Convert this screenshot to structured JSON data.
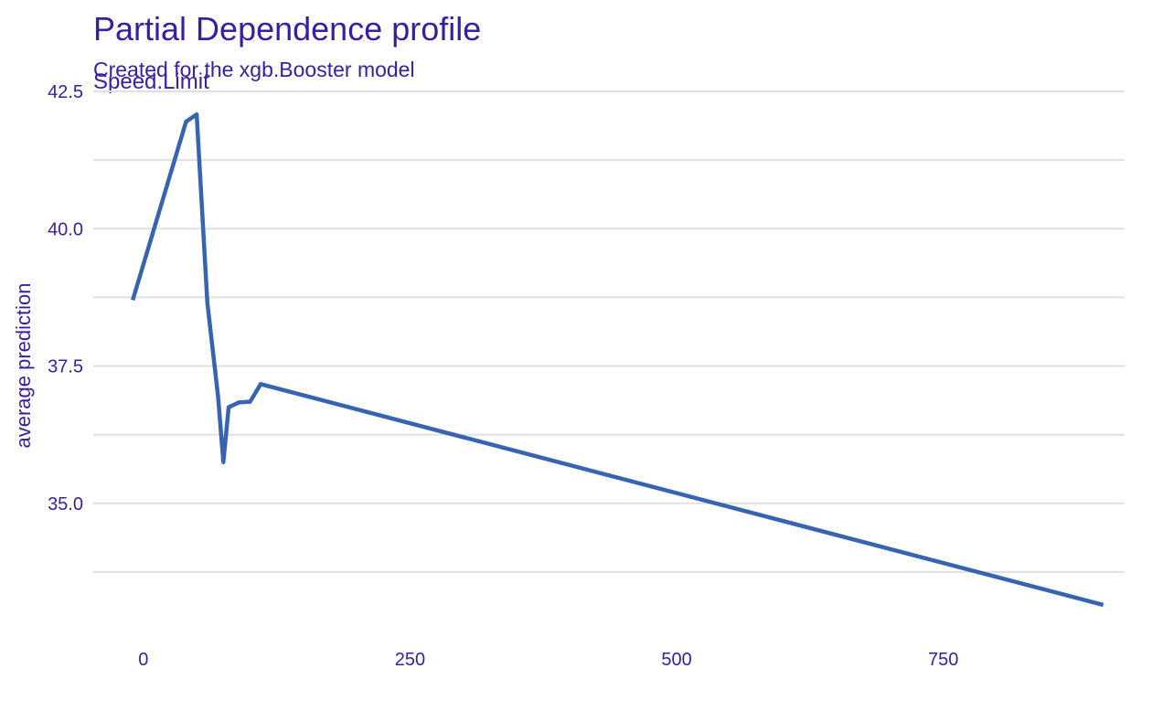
{
  "chart_data": {
    "type": "line",
    "title": "Partial Dependence profile",
    "subtitle": "Created for the xgb.Booster model",
    "facet_label": "Speed.Limit",
    "ylabel": "average prediction",
    "xlabel": "",
    "xlim": [
      -47,
      920
    ],
    "ylim": [
      32.6,
      42.5
    ],
    "x_ticks": [
      0,
      250,
      500,
      750
    ],
    "x_tick_labels": [
      "0",
      "250",
      "500",
      "750"
    ],
    "y_ticks": [
      35.0,
      37.5,
      40.0,
      42.5
    ],
    "y_tick_labels": [
      "35.0",
      "37.5",
      "40.0",
      "42.5"
    ],
    "y_minor_ticks": [
      33.75,
      36.25,
      38.75,
      41.25
    ],
    "grid": true,
    "series": [
      {
        "x": [
          -10,
          40,
          50,
          60,
          70,
          75,
          80,
          90,
          100,
          110,
          900
        ],
        "y": [
          38.7,
          41.95,
          42.08,
          38.65,
          36.95,
          35.75,
          36.75,
          36.84,
          36.85,
          37.17,
          33.15
        ],
        "color": "#3764b0"
      }
    ],
    "colors": {
      "text": "#371ea3",
      "grid": "#e0e0e0",
      "line": "#3764b0"
    }
  }
}
